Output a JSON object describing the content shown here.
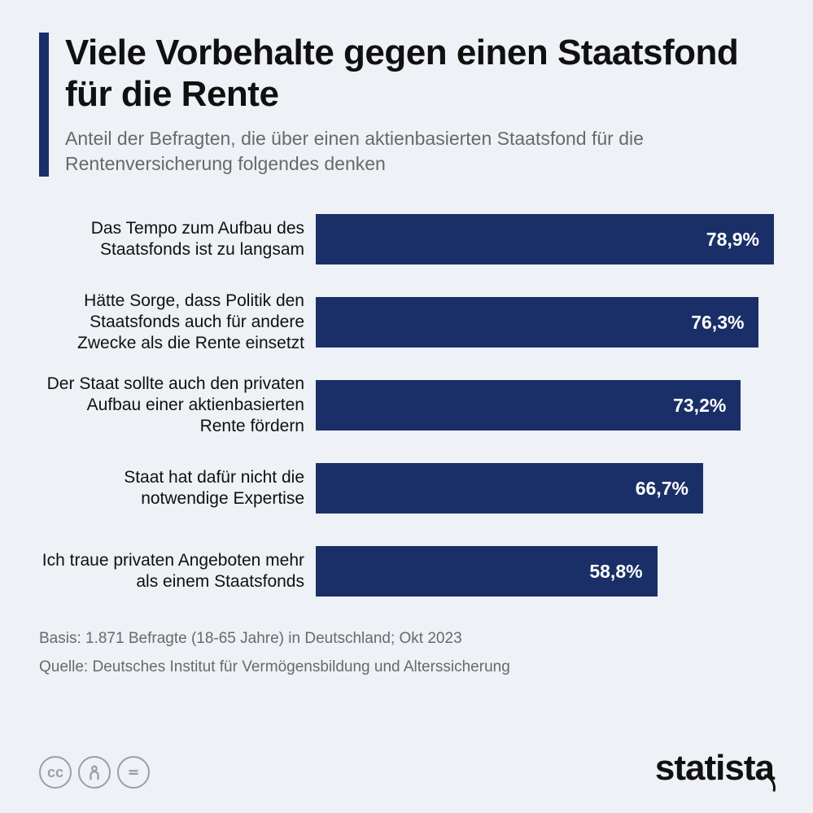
{
  "colors": {
    "background": "#eef1f6",
    "bar": "#1a2f67",
    "title": "#101010",
    "subtitle": "#68696b",
    "label": "#101010",
    "value": "#ffffff",
    "icon_stroke": "#9a9fa6"
  },
  "header": {
    "title": "Viele Vorbehalte gegen einen Staatsfond für die Rente",
    "subtitle": "Anteil der Befragten, die über einen aktienbasierten Staatsfond für die Rentenversicherung folgendes denken"
  },
  "chart": {
    "type": "bar",
    "max_value": 100,
    "bar_color": "#1a2f67",
    "items": [
      {
        "label": "Das Tempo zum Aufbau des Staatsfonds ist zu langsam",
        "value": 78.9,
        "display": "78,9%"
      },
      {
        "label": "Hätte Sorge, dass Politik den Staatsfonds auch für andere Zwecke als die Rente einsetzt",
        "value": 76.3,
        "display": "76,3%"
      },
      {
        "label": "Der Staat sollte auch den privaten Aufbau einer aktienbasierten Rente fördern",
        "value": 73.2,
        "display": "73,2%"
      },
      {
        "label": "Staat hat dafür nicht die notwendige Expertise",
        "value": 66.7,
        "display": "66,7%"
      },
      {
        "label": "Ich traue privaten Angeboten mehr als einem Staatsfonds",
        "value": 58.8,
        "display": "58,8%"
      }
    ]
  },
  "footer": {
    "basis": "Basis: 1.871 Befragte (18-65 Jahre) in Deutschland; Okt 2023",
    "quelle": "Quelle: Deutsches Institut für Vermögensbildung und Alterssicherung"
  },
  "logo": {
    "text": "statista"
  },
  "license_icons": [
    "cc",
    "by",
    "nd"
  ]
}
